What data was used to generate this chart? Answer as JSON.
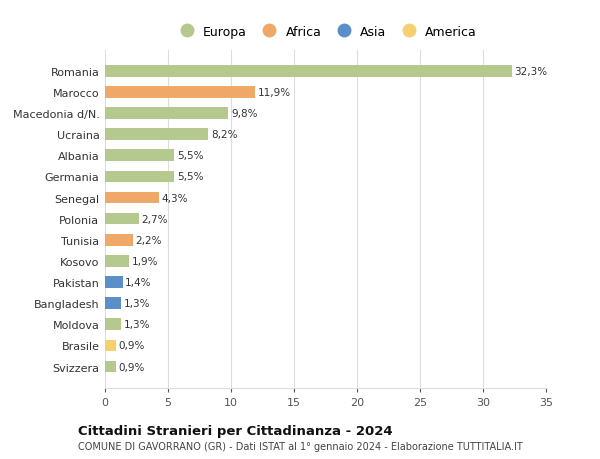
{
  "countries": [
    "Romania",
    "Marocco",
    "Macedonia d/N.",
    "Ucraina",
    "Albania",
    "Germania",
    "Senegal",
    "Polonia",
    "Tunisia",
    "Kosovo",
    "Pakistan",
    "Bangladesh",
    "Moldova",
    "Brasile",
    "Svizzera"
  ],
  "values": [
    32.3,
    11.9,
    9.8,
    8.2,
    5.5,
    5.5,
    4.3,
    2.7,
    2.2,
    1.9,
    1.4,
    1.3,
    1.3,
    0.9,
    0.9
  ],
  "labels": [
    "32,3%",
    "11,9%",
    "9,8%",
    "8,2%",
    "5,5%",
    "5,5%",
    "4,3%",
    "2,7%",
    "2,2%",
    "1,9%",
    "1,4%",
    "1,3%",
    "1,3%",
    "0,9%",
    "0,9%"
  ],
  "continents": [
    "Europa",
    "Africa",
    "Europa",
    "Europa",
    "Europa",
    "Europa",
    "Africa",
    "Europa",
    "Africa",
    "Europa",
    "Asia",
    "Asia",
    "Europa",
    "America",
    "Europa"
  ],
  "colors": {
    "Europa": "#b5c98e",
    "Africa": "#f0a868",
    "Asia": "#5b8fc9",
    "America": "#f5d06e"
  },
  "legend_entries": [
    "Europa",
    "Africa",
    "Asia",
    "America"
  ],
  "xlim": [
    0,
    35
  ],
  "xticks": [
    0,
    5,
    10,
    15,
    20,
    25,
    30,
    35
  ],
  "title": "Cittadini Stranieri per Cittadinanza - 2024",
  "subtitle": "COMUNE DI GAVORRANO (GR) - Dati ISTAT al 1° gennaio 2024 - Elaborazione TUTTITALIA.IT",
  "background_color": "#ffffff",
  "grid_color": "#dddddd",
  "bar_height": 0.55
}
